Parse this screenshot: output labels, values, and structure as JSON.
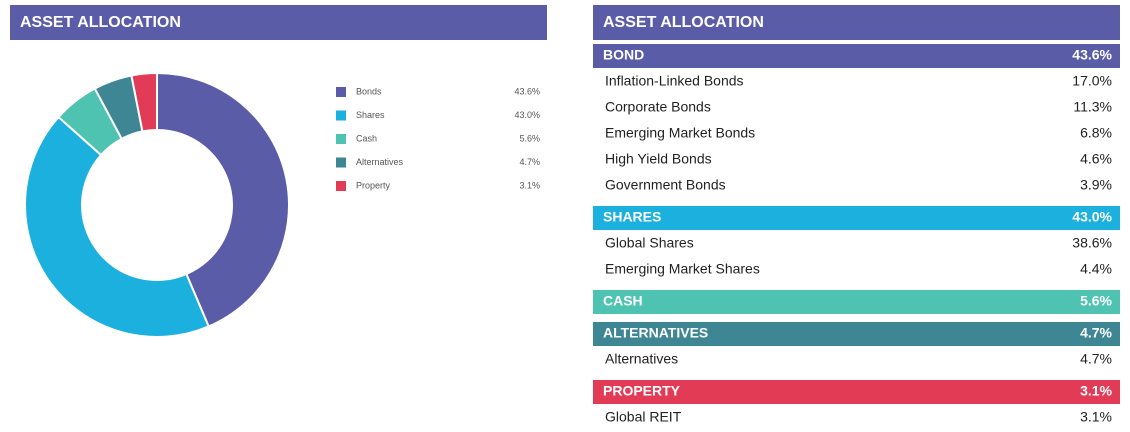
{
  "chart_data": {
    "type": "pie",
    "donut": true,
    "title": "ASSET ALLOCATION",
    "categories": [
      "Bonds",
      "Shares",
      "Cash",
      "Alternatives",
      "Property"
    ],
    "values": [
      43.6,
      43.0,
      5.6,
      4.7,
      3.1
    ],
    "value_labels": [
      "43.6%",
      "43.0%",
      "5.6%",
      "4.7%",
      "3.1%"
    ],
    "colors": [
      "#5a5ca8",
      "#1bb0dd",
      "#4fc3b2",
      "#3e8694",
      "#e23b56"
    ]
  },
  "table": {
    "title": "ASSET ALLOCATION",
    "groups": [
      {
        "name": "BOND",
        "value": "43.6%",
        "color": "#5a5ca8",
        "rows": [
          [
            "Inflation-Linked Bonds",
            "17.0%"
          ],
          [
            "Corporate Bonds",
            "11.3%"
          ],
          [
            "Emerging Market Bonds",
            "6.8%"
          ],
          [
            "High Yield Bonds",
            "4.6%"
          ],
          [
            "Government Bonds",
            "3.9%"
          ]
        ]
      },
      {
        "name": "SHARES",
        "value": "43.0%",
        "color": "#1bb0dd",
        "rows": [
          [
            "Global Shares",
            "38.6%"
          ],
          [
            "Emerging Market Shares",
            "4.4%"
          ]
        ]
      },
      {
        "name": "CASH",
        "value": "5.6%",
        "color": "#4fc3b2",
        "rows": []
      },
      {
        "name": "ALTERNATIVES",
        "value": "4.7%",
        "color": "#3e8694",
        "rows": [
          [
            "Alternatives",
            "4.7%"
          ]
        ]
      },
      {
        "name": "PROPERTY",
        "value": "3.1%",
        "color": "#e23b56",
        "rows": [
          [
            "Global REIT",
            "3.1%"
          ]
        ]
      }
    ]
  }
}
